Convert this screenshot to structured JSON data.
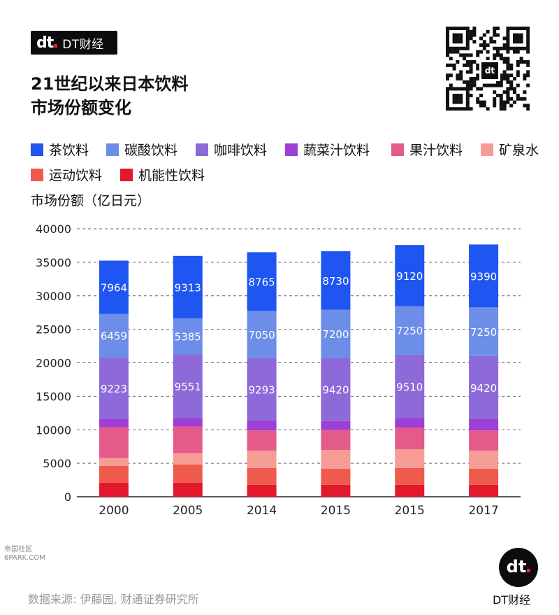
{
  "brand": {
    "logo_text": "DT财经",
    "footer_brand": "DT财经"
  },
  "title_line1": "21世纪以来日本饮料",
  "title_line2": "市场份额变化",
  "source": "数据来源: 伊藤园, 财通证券研究所",
  "watermark_lines": [
    "帝国社区",
    "6PARK.COM"
  ],
  "chart_data": {
    "type": "bar",
    "stacked": true,
    "ylabel": "市场份额（亿日元）",
    "ylim": [
      0,
      40000
    ],
    "yticks": [
      0,
      5000,
      10000,
      15000,
      20000,
      25000,
      30000,
      35000,
      40000
    ],
    "grid": true,
    "legend_position": "top",
    "categories": [
      "2000",
      "2005",
      "2014",
      "2015",
      "2015",
      "2017"
    ],
    "series": [
      {
        "name": "机能性饮料",
        "color": "#e4182c",
        "values": [
          2100,
          2100,
          1800,
          1800,
          1800,
          1800
        ],
        "show_labels": false
      },
      {
        "name": "运动饮料",
        "color": "#ee5a4c",
        "values": [
          2500,
          2700,
          2500,
          2400,
          2500,
          2400
        ],
        "show_labels": false
      },
      {
        "name": "矿泉水",
        "color": "#f59c95",
        "values": [
          1200,
          1700,
          2600,
          2800,
          2800,
          2700
        ],
        "show_labels": false
      },
      {
        "name": "果汁饮料",
        "color": "#e45a8a",
        "values": [
          4600,
          4000,
          3000,
          3000,
          3200,
          3000
        ],
        "show_labels": false
      },
      {
        "name": "蔬菜汁饮料",
        "color": "#9d3ed6",
        "values": [
          1200,
          1200,
          1500,
          1300,
          1400,
          1700
        ],
        "show_labels": false
      },
      {
        "name": "咖啡饮料",
        "color": "#8d6ad8",
        "values": [
          9223,
          9551,
          9293,
          9420,
          9510,
          9420
        ],
        "show_labels": true
      },
      {
        "name": "碳酸饮料",
        "color": "#6c8de8",
        "values": [
          6459,
          5385,
          7050,
          7200,
          7250,
          7250
        ],
        "show_labels": true
      },
      {
        "name": "茶饮料",
        "color": "#1f55f0",
        "values": [
          7964,
          9313,
          8765,
          8730,
          9120,
          9390
        ],
        "show_labels": true
      }
    ],
    "legend_order": [
      "茶饮料",
      "碳酸饮料",
      "咖啡饮料",
      "蔬菜汁饮料",
      "果汁饮料",
      "矿泉水",
      "运动饮料",
      "机能性饮料"
    ]
  }
}
